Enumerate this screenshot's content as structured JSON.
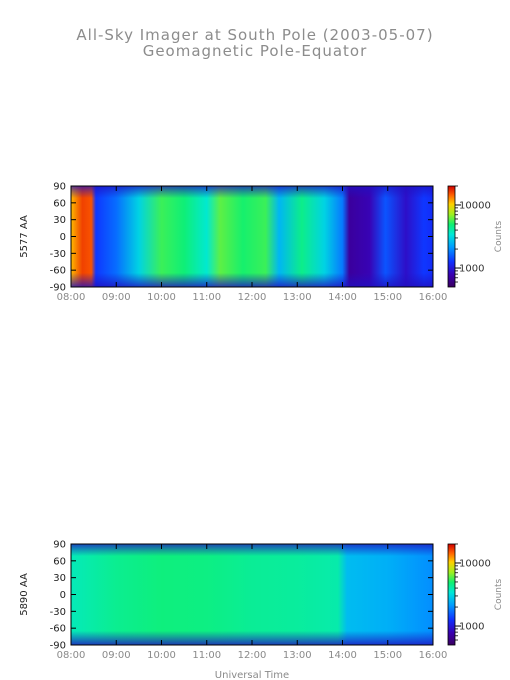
{
  "figure": {
    "title": "All-Sky Imager at South Pole (2003-05-07)",
    "subtitle": "Geomagnetic Pole-Equator",
    "xlabel": "Universal Time"
  },
  "chart_data": [
    {
      "type": "heatmap",
      "ylabel": "5577 AA",
      "x_range": [
        "08:00",
        "16:00"
      ],
      "xticks": [
        "08:00",
        "09:00",
        "10:00",
        "11:00",
        "12:00",
        "13:00",
        "14:00",
        "15:00",
        "16:00"
      ],
      "ylim": [
        -90,
        90
      ],
      "yticks": [
        90,
        60,
        30,
        0,
        -30,
        -60,
        -90
      ],
      "colorbar": {
        "label": "Counts",
        "scale": "log",
        "ticks": [
          10000,
          1000
        ],
        "tick_labels": [
          "10000",
          "1000"
        ],
        "range": [
          500,
          20000
        ]
      },
      "time_profile": [
        {
          "t": 8.0,
          "c": 11000
        },
        {
          "t": 8.25,
          "c": 16000
        },
        {
          "t": 8.45,
          "c": 15000
        },
        {
          "t": 8.55,
          "c": 1300
        },
        {
          "t": 9.0,
          "c": 1700
        },
        {
          "t": 9.5,
          "c": 3000
        },
        {
          "t": 10.0,
          "c": 5500
        },
        {
          "t": 10.5,
          "c": 4800
        },
        {
          "t": 11.0,
          "c": 3500
        },
        {
          "t": 11.3,
          "c": 6000
        },
        {
          "t": 11.8,
          "c": 5000
        },
        {
          "t": 12.3,
          "c": 5500
        },
        {
          "t": 12.6,
          "c": 2500
        },
        {
          "t": 13.1,
          "c": 4500
        },
        {
          "t": 13.6,
          "c": 3000
        },
        {
          "t": 14.0,
          "c": 1800
        },
        {
          "t": 14.15,
          "c": 700
        },
        {
          "t": 14.6,
          "c": 800
        },
        {
          "t": 14.95,
          "c": 1500
        },
        {
          "t": 15.4,
          "c": 900
        },
        {
          "t": 15.8,
          "c": 1300
        },
        {
          "t": 16.0,
          "c": 1200
        }
      ]
    },
    {
      "type": "heatmap",
      "ylabel": "5890 AA",
      "x_range": [
        "08:00",
        "16:00"
      ],
      "xticks": [
        "08:00",
        "09:00",
        "10:00",
        "11:00",
        "12:00",
        "13:00",
        "14:00",
        "15:00",
        "16:00"
      ],
      "ylim": [
        -90,
        90
      ],
      "yticks": [
        90,
        60,
        30,
        0,
        -30,
        -60,
        -90
      ],
      "colorbar": {
        "label": "Counts",
        "scale": "log",
        "ticks": [
          10000,
          1000
        ],
        "tick_labels": [
          "10000",
          "1000"
        ],
        "range": [
          500,
          20000
        ]
      },
      "time_profile": [
        {
          "t": 8.0,
          "c": 3800
        },
        {
          "t": 9.0,
          "c": 4400
        },
        {
          "t": 10.0,
          "c": 4700
        },
        {
          "t": 11.0,
          "c": 4600
        },
        {
          "t": 12.0,
          "c": 4300
        },
        {
          "t": 13.0,
          "c": 4200
        },
        {
          "t": 13.9,
          "c": 4000
        },
        {
          "t": 14.1,
          "c": 2600
        },
        {
          "t": 15.0,
          "c": 2400
        },
        {
          "t": 16.0,
          "c": 2000
        }
      ]
    }
  ]
}
